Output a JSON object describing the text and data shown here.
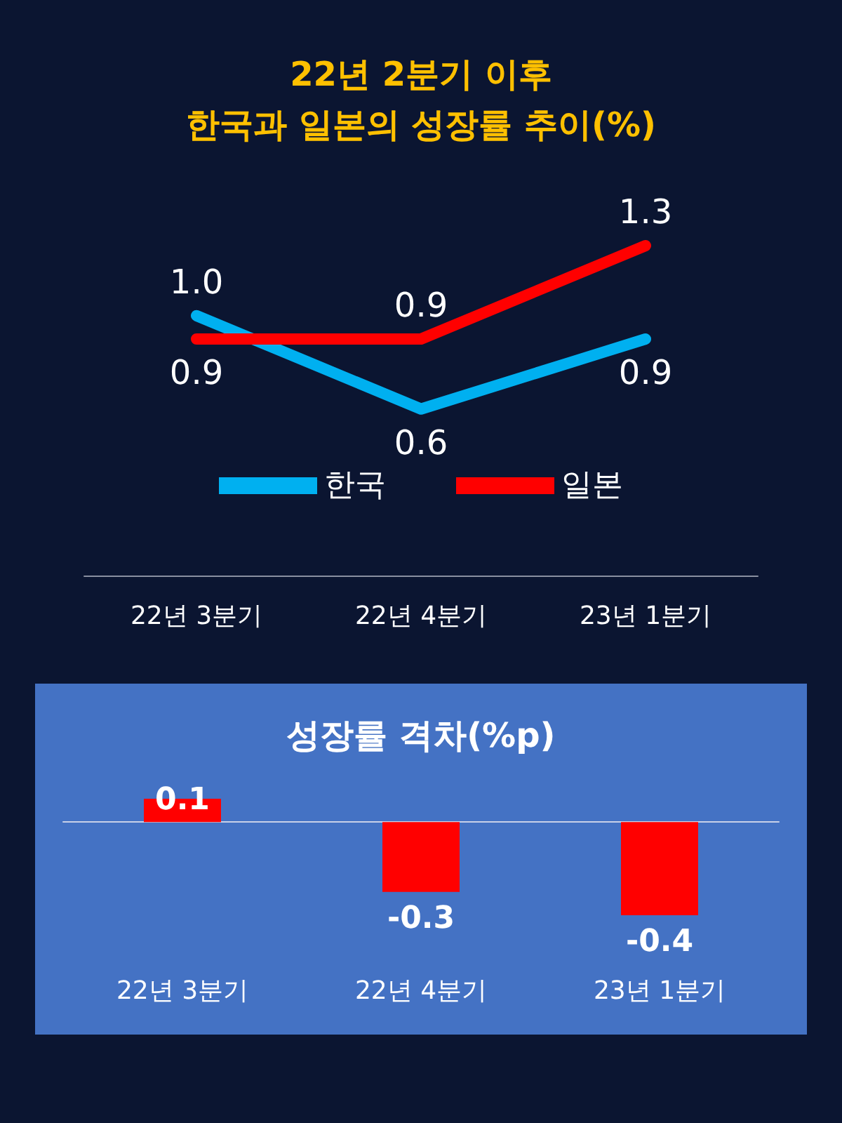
{
  "chart_data": [
    {
      "type": "line",
      "title": "22년 2분기 이후\n한국과 일본의 성장률 추이(%)",
      "categories": [
        "22년 3분기",
        "22년 4분기",
        "23년 1분기"
      ],
      "series": [
        {
          "name": "한국",
          "color": "#00b0f0",
          "values": [
            1.0,
            0.6,
            0.9
          ],
          "value_labels": [
            "1.0",
            "0.6",
            "0.9"
          ]
        },
        {
          "name": "일본",
          "color": "#ff0000",
          "values": [
            0.9,
            0.9,
            1.3
          ],
          "value_labels": [
            "0.9",
            "0.9",
            "1.3"
          ]
        }
      ],
      "legend": "bottom",
      "grid": false,
      "marker": "none",
      "line_style": "solid"
    },
    {
      "type": "bar",
      "title": "성장률 격차(%p)",
      "categories": [
        "22년 3분기",
        "22년 4분기",
        "23년 1분기"
      ],
      "values": [
        0.1,
        -0.3,
        -0.4
      ],
      "color": "#ff0000",
      "data_labels": true,
      "grid": false
    }
  ]
}
